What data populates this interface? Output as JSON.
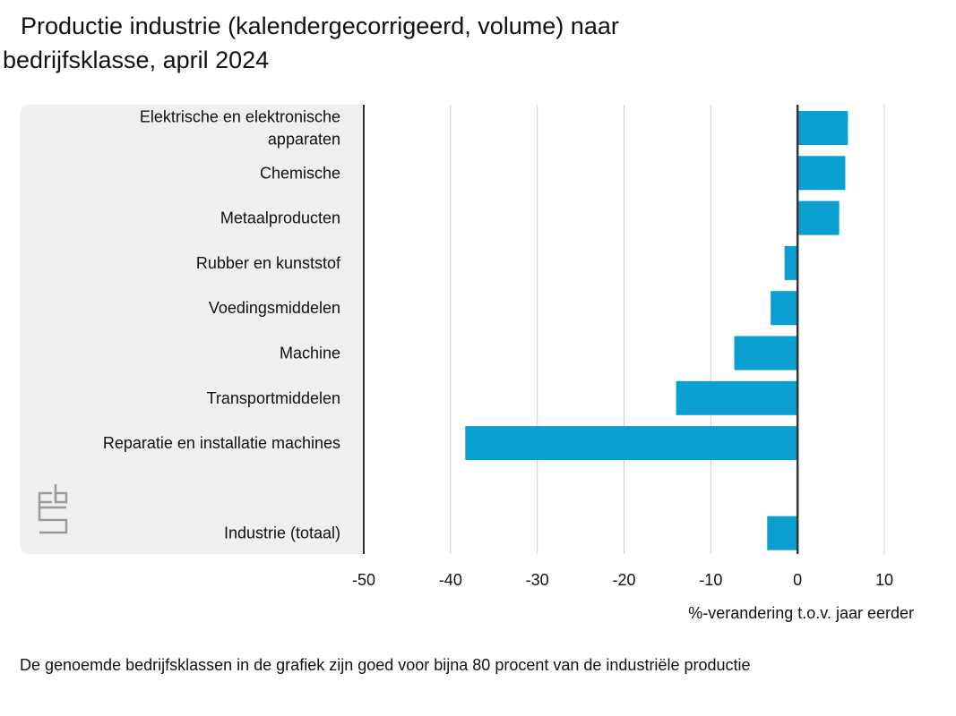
{
  "header": {
    "title_line1": "Productie industrie (kalendergecorrigeerd, volume) naar",
    "title_line2": "bedrijfsklasse, april 2024"
  },
  "logo": {
    "icon": "cbs-logo-icon"
  },
  "footnote": "De genoemde bedrijfsklassen in de grafiek zijn goed voor bijna 80 procent van de industriële productie",
  "colors": {
    "bar": "#0a9fd0",
    "grid": "#d0d0d0",
    "axis": "#333333",
    "panel": "#efefef"
  },
  "chart_data": {
    "type": "bar",
    "orientation": "horizontal",
    "title": "Productie industrie (kalendergecorrigeerd, volume) naar bedrijfsklasse, april 2024",
    "xlabel": "%-verandering t.o.v. jaar eerder",
    "ylabel": "",
    "xlim": [
      -50,
      10
    ],
    "xticks": [
      "-50",
      "-40",
      "-30",
      "-20",
      "-10",
      "0",
      "10"
    ],
    "grid": true,
    "categories": [
      {
        "lines": [
          "Elektrische en elektronische",
          "apparaten"
        ],
        "value": 5.8
      },
      {
        "lines": [
          "Chemische"
        ],
        "value": 5.5
      },
      {
        "lines": [
          "Metaalproducten"
        ],
        "value": 4.8
      },
      {
        "lines": [
          "Rubber en kunststof"
        ],
        "value": -1.5
      },
      {
        "lines": [
          "Voedingsmiddelen"
        ],
        "value": -3.1
      },
      {
        "lines": [
          "Machine"
        ],
        "value": -7.3
      },
      {
        "lines": [
          "Transportmiddelen"
        ],
        "value": -14.0
      },
      {
        "lines": [
          "Reparatie en installatie machines"
        ],
        "value": -38.3
      },
      {
        "lines": [
          "Industrie (totaal)"
        ],
        "value": -3.5,
        "gap_before": true
      }
    ]
  }
}
